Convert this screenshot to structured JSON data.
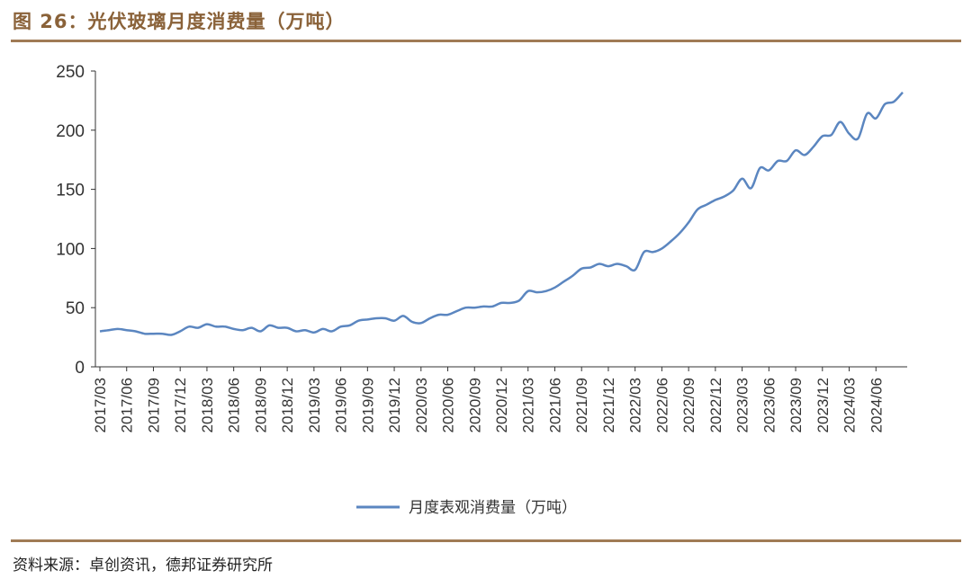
{
  "figure": {
    "title": "图 26：光伏玻璃月度消费量（万吨）",
    "source": "资料来源：卓创资讯，德邦证券研究所"
  },
  "colors": {
    "accent": "#a07b55",
    "title_text": "#8a6239",
    "series_line": "#5b86c0",
    "axis": "#333333"
  },
  "chart_data": {
    "type": "line",
    "title": "",
    "xlabel": "",
    "ylabel": "",
    "ylim": [
      0,
      250
    ],
    "yticks": [
      0,
      50,
      100,
      150,
      200,
      250
    ],
    "grid": false,
    "legend_position": "bottom-center",
    "x_tick_labels": [
      "2017/03",
      "2017/06",
      "2017/09",
      "2017/12",
      "2018/03",
      "2018/06",
      "2018/09",
      "2018/12",
      "2019/03",
      "2019/06",
      "2019/09",
      "2019/12",
      "2020/03",
      "2020/06",
      "2020/09",
      "2020/12",
      "2021/03",
      "2021/06",
      "2021/09",
      "2021/12",
      "2022/03",
      "2022/06",
      "2022/09",
      "2022/12",
      "2023/03",
      "2023/06",
      "2023/09",
      "2023/12",
      "2024/03",
      "2024/06"
    ],
    "series": [
      {
        "name": "月度表观消费量（万吨）",
        "start": "2017/03",
        "values": [
          30,
          31,
          32,
          31,
          30,
          28,
          28,
          28,
          27,
          30,
          34,
          33,
          36,
          34,
          34,
          32,
          31,
          33,
          30,
          35,
          33,
          33,
          30,
          31,
          29,
          32,
          30,
          34,
          35,
          39,
          40,
          41,
          41,
          39,
          43,
          38,
          37,
          41,
          44,
          44,
          47,
          50,
          50,
          51,
          51,
          54,
          54,
          56,
          64,
          63,
          64,
          67,
          72,
          77,
          83,
          84,
          87,
          85,
          87,
          85,
          82,
          97,
          97,
          100,
          106,
          113,
          122,
          133,
          137,
          141,
          144,
          149,
          159,
          151,
          168,
          166,
          174,
          174,
          183,
          179,
          186,
          195,
          196,
          207,
          197,
          193,
          214,
          210,
          222,
          224,
          232
        ]
      }
    ]
  }
}
